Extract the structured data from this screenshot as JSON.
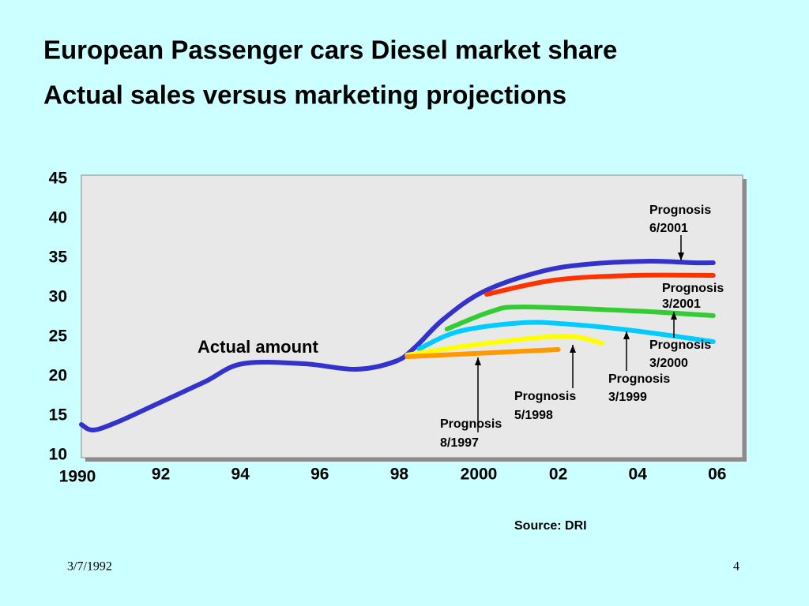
{
  "title": [
    "European Passenger cars Diesel market share",
    "Actual sales versus marketing projections"
  ],
  "chart_data": {
    "type": "line",
    "xlim": [
      1990,
      2006.64
    ],
    "ylim": [
      10,
      45
    ],
    "xticks": [
      1990,
      {
        "value": 1992,
        "label": "92"
      },
      {
        "value": 1994,
        "label": "94"
      },
      {
        "value": 1996,
        "label": "96"
      },
      {
        "value": 1998,
        "label": "98"
      },
      2000,
      {
        "value": 2002,
        "label": "02"
      },
      {
        "value": 2004,
        "label": "04"
      },
      {
        "value": 2006,
        "label": "06"
      }
    ],
    "yticks": [
      10,
      15,
      20,
      25,
      30,
      35,
      40,
      45
    ],
    "series": [
      {
        "name": "Actual amount",
        "color": "#3333cc",
        "x": [
          1990,
          1990.3,
          1990.9,
          1991.9,
          1993.1,
          1994.05,
          1995.6,
          1996.9,
          1997.9,
          1998.4,
          1999.1,
          2000.1,
          2001.5,
          2002.7,
          2004.3,
          2005.4,
          2005.9
        ],
        "values": [
          14.1,
          13.4,
          14.4,
          16.7,
          19.5,
          21.8,
          21.8,
          21.1,
          22.1,
          23.9,
          27.4,
          30.9,
          33.4,
          34.4,
          34.8,
          34.6,
          34.6
        ]
      },
      {
        "color": "#ff3300",
        "x": [
          2000.2,
          2001.9,
          2003.9,
          2005.9
        ],
        "values": [
          30.6,
          32.4,
          33.0,
          33.0
        ]
      },
      {
        "color": "#33cc33",
        "x": [
          1999.2,
          2000.3,
          2001.1,
          2003.9,
          2005.9
        ],
        "values": [
          26.2,
          28.4,
          29.0,
          28.5,
          27.9
        ]
      },
      {
        "color": "#00ccff",
        "x": [
          1998.5,
          1999.5,
          2001.1,
          2002.3,
          2003.9,
          2005.9
        ],
        "values": [
          23.7,
          25.9,
          27.0,
          26.8,
          26.0,
          24.6
        ]
      },
      {
        "color": "#ffff00",
        "x": [
          1998.2,
          1999.9,
          2002.1,
          2003.1
        ],
        "values": [
          22.9,
          24.2,
          25.3,
          24.4
        ]
      },
      {
        "color": "#ff9900",
        "x": [
          1998.2,
          1999.9,
          2002.0
        ],
        "values": [
          22.7,
          23.1,
          23.6
        ]
      }
    ],
    "annotations": [
      [
        "Prognosis",
        "6/2001"
      ],
      [
        "Prognosis",
        "3/2001"
      ],
      [
        "Prognosis",
        "3/2000"
      ],
      [
        "Prognosis",
        "3/1999"
      ],
      [
        "Prognosis",
        "5/1998"
      ],
      [
        "Prognosis",
        "8/1997"
      ]
    ],
    "source": "Source: DRI"
  },
  "footer": {
    "date": "3/7/1992",
    "page": "4"
  }
}
